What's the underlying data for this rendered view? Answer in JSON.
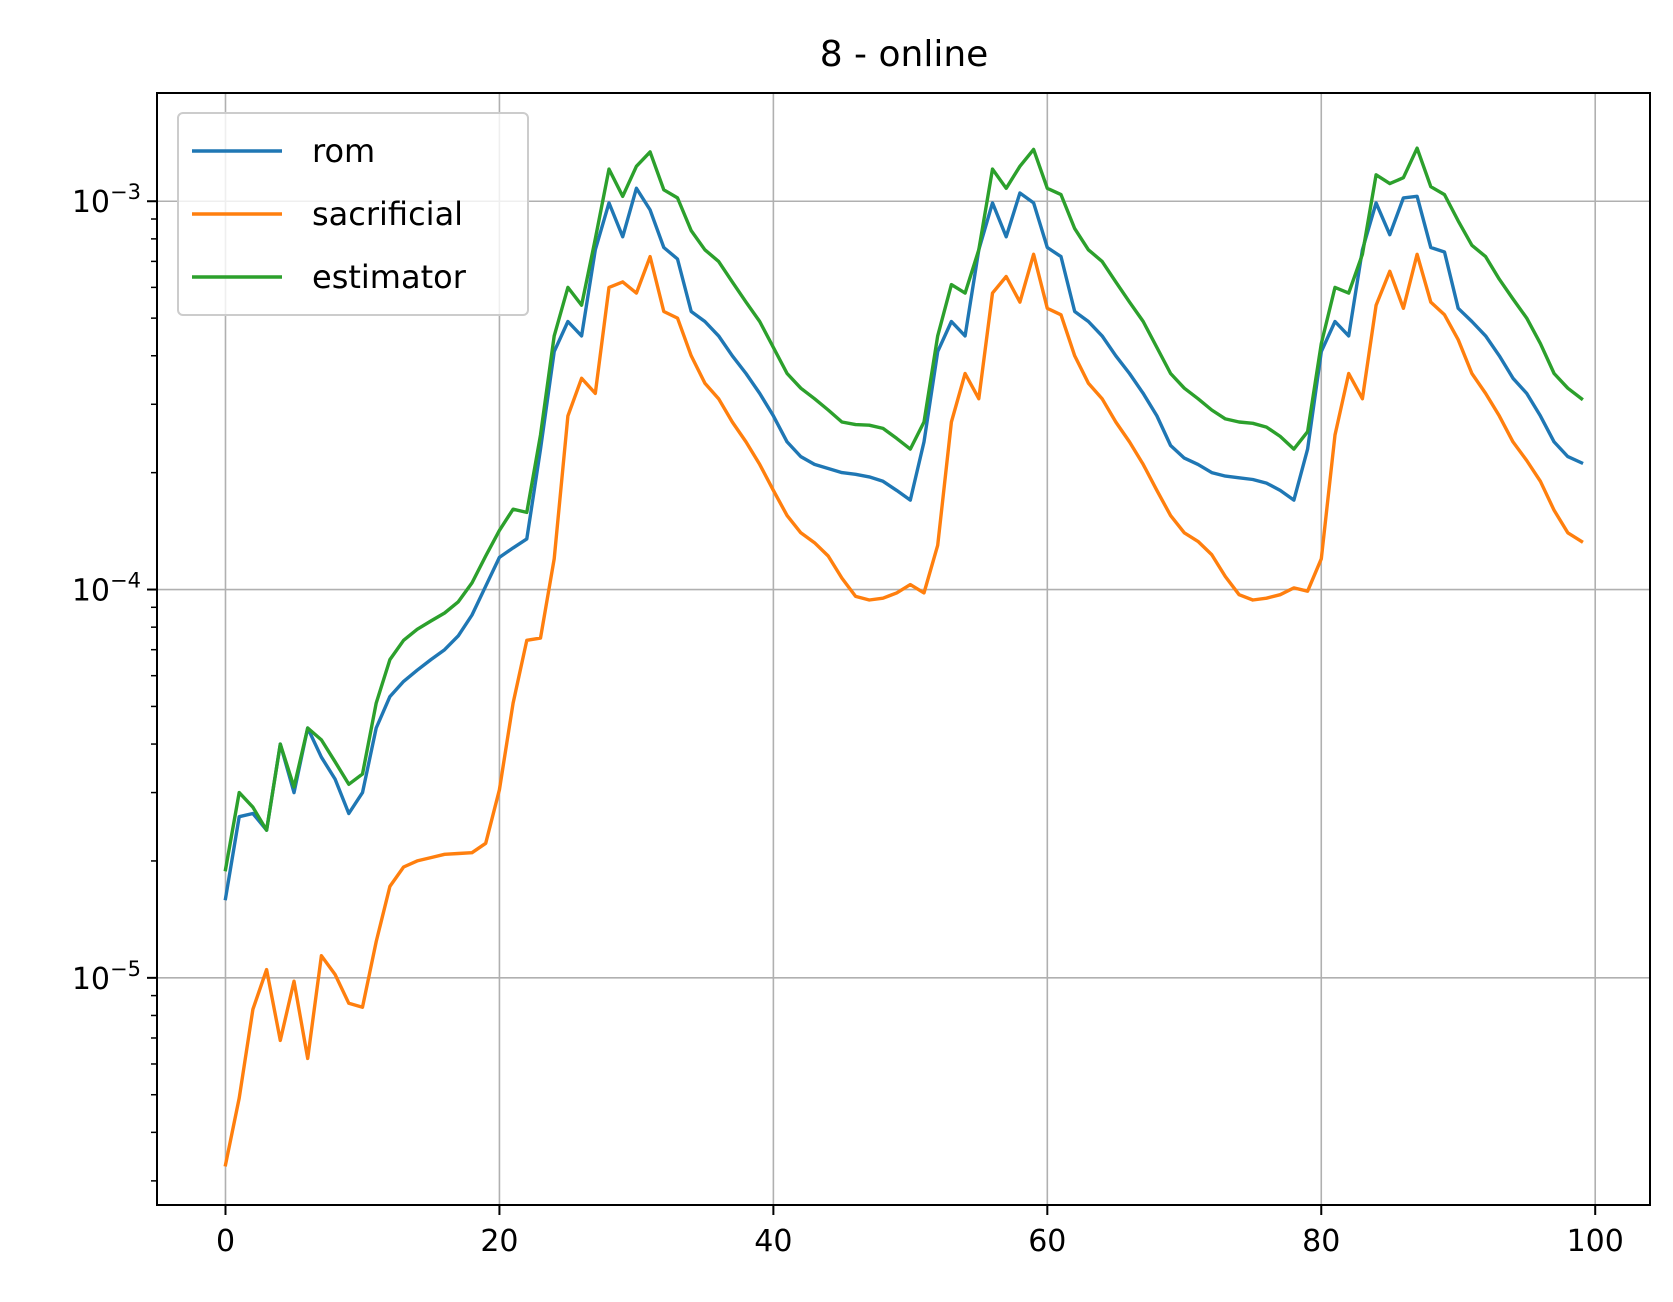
{
  "chart_data": {
    "type": "line",
    "title": "8 - online",
    "xlabel": "",
    "ylabel": "",
    "xlim": [
      -5,
      104
    ],
    "ylim": [
      2.6e-06,
      0.0019
    ],
    "yscale": "log",
    "grid": true,
    "legend_position": "top-left",
    "x_ticks": [
      0,
      20,
      40,
      60,
      80,
      100
    ],
    "x_tick_labels": [
      "0",
      "20",
      "40",
      "60",
      "80",
      "100"
    ],
    "y_ticks": [
      1e-05,
      0.0001,
      0.001
    ],
    "y_tick_labels": [
      {
        "base": "10",
        "exp": "−5"
      },
      {
        "base": "10",
        "exp": "−4"
      },
      {
        "base": "10",
        "exp": "−3"
      }
    ],
    "series": [
      {
        "name": "rom",
        "color": "#1f77b4",
        "x": [
          0,
          1,
          2,
          3,
          4,
          5,
          6,
          7,
          8,
          9,
          10,
          11,
          12,
          13,
          14,
          15,
          16,
          17,
          18,
          19,
          20,
          21,
          22,
          23,
          24,
          25,
          26,
          27,
          28,
          29,
          30,
          31,
          32,
          33,
          34,
          35,
          36,
          37,
          38,
          39,
          40,
          41,
          42,
          43,
          44,
          45,
          46,
          47,
          48,
          49,
          50,
          51,
          52,
          53,
          54,
          55,
          56,
          57,
          58,
          59,
          60,
          61,
          62,
          63,
          64,
          65,
          66,
          67,
          68,
          69,
          70,
          71,
          72,
          73,
          74,
          75,
          76,
          77,
          78,
          79,
          80,
          81,
          82,
          83,
          84,
          85,
          86,
          87,
          88,
          89,
          90,
          91,
          92,
          93,
          94,
          95,
          96,
          97,
          98,
          99
        ],
        "values": [
          1.6e-05,
          2.6e-05,
          2.65e-05,
          2.4e-05,
          4e-05,
          3e-05,
          4.4e-05,
          3.7e-05,
          3.25e-05,
          2.65e-05,
          3e-05,
          4.4e-05,
          5.3e-05,
          5.8e-05,
          6.2e-05,
          6.6e-05,
          7e-05,
          7.6e-05,
          8.6e-05,
          0.000102,
          0.000121,
          0.000128,
          0.000135,
          0.00023,
          0.00041,
          0.00049,
          0.00045,
          0.00075,
          0.00099,
          0.00081,
          0.00108,
          0.00095,
          0.00076,
          0.00071,
          0.00052,
          0.00049,
          0.00045,
          0.0004,
          0.00036,
          0.00032,
          0.00028,
          0.00024,
          0.00022,
          0.00021,
          0.000205,
          0.0002,
          0.000198,
          0.000195,
          0.00019,
          0.00018,
          0.00017,
          0.00024,
          0.00041,
          0.00049,
          0.00045,
          0.00075,
          0.00099,
          0.00081,
          0.00105,
          0.00099,
          0.00076,
          0.00072,
          0.00052,
          0.00049,
          0.00045,
          0.0004,
          0.00036,
          0.00032,
          0.00028,
          0.000235,
          0.000218,
          0.00021,
          0.0002,
          0.000196,
          0.000194,
          0.000192,
          0.000188,
          0.00018,
          0.00017,
          0.00023,
          0.00041,
          0.00049,
          0.00045,
          0.00075,
          0.00099,
          0.00082,
          0.00102,
          0.00103,
          0.00076,
          0.00074,
          0.00053,
          0.00049,
          0.00045,
          0.0004,
          0.00035,
          0.00032,
          0.00028,
          0.00024,
          0.00022,
          0.000212
        ]
      },
      {
        "name": "sacrificial",
        "color": "#ff7f0e",
        "x": [
          0,
          1,
          2,
          3,
          4,
          5,
          6,
          7,
          8,
          9,
          10,
          11,
          12,
          13,
          14,
          15,
          16,
          17,
          18,
          19,
          20,
          21,
          22,
          23,
          24,
          25,
          26,
          27,
          28,
          29,
          30,
          31,
          32,
          33,
          34,
          35,
          36,
          37,
          38,
          39,
          40,
          41,
          42,
          43,
          44,
          45,
          46,
          47,
          48,
          49,
          50,
          51,
          52,
          53,
          54,
          55,
          56,
          57,
          58,
          59,
          60,
          61,
          62,
          63,
          64,
          65,
          66,
          67,
          68,
          69,
          70,
          71,
          72,
          73,
          74,
          75,
          76,
          77,
          78,
          79,
          80,
          81,
          82,
          83,
          84,
          85,
          86,
          87,
          88,
          89,
          90,
          91,
          92,
          93,
          94,
          95,
          96,
          97,
          98,
          99
        ],
        "values": [
          3.3e-06,
          4.9e-06,
          8.3e-06,
          1.05e-05,
          6.9e-06,
          9.8e-06,
          6.2e-06,
          1.14e-05,
          1.02e-05,
          8.6e-06,
          8.4e-06,
          1.24e-05,
          1.72e-05,
          1.93e-05,
          2e-05,
          2.04e-05,
          2.08e-05,
          2.09e-05,
          2.1e-05,
          2.22e-05,
          3.05e-05,
          5.1e-05,
          7.4e-05,
          7.5e-05,
          0.00012,
          0.00028,
          0.00035,
          0.00032,
          0.0006,
          0.00062,
          0.00058,
          0.00072,
          0.00052,
          0.0005,
          0.0004,
          0.00034,
          0.00031,
          0.00027,
          0.00024,
          0.00021,
          0.00018,
          0.000155,
          0.00014,
          0.000132,
          0.000122,
          0.000107,
          9.6e-05,
          9.4e-05,
          9.5e-05,
          9.8e-05,
          0.000103,
          9.8e-05,
          0.00013,
          0.00027,
          0.00036,
          0.00031,
          0.00058,
          0.00064,
          0.00055,
          0.00073,
          0.00053,
          0.00051,
          0.0004,
          0.00034,
          0.00031,
          0.00027,
          0.00024,
          0.00021,
          0.00018,
          0.000155,
          0.00014,
          0.000133,
          0.000123,
          0.000108,
          9.7e-05,
          9.4e-05,
          9.5e-05,
          9.7e-05,
          0.000101,
          9.9e-05,
          0.00012,
          0.00025,
          0.00036,
          0.00031,
          0.00054,
          0.00066,
          0.00053,
          0.00073,
          0.00055,
          0.00051,
          0.00044,
          0.00036,
          0.00032,
          0.00028,
          0.00024,
          0.000215,
          0.00019,
          0.00016,
          0.00014,
          0.000133
        ]
      },
      {
        "name": "estimator",
        "color": "#2ca02c",
        "x": [
          0,
          1,
          2,
          3,
          4,
          5,
          6,
          7,
          8,
          9,
          10,
          11,
          12,
          13,
          14,
          15,
          16,
          17,
          18,
          19,
          20,
          21,
          22,
          23,
          24,
          25,
          26,
          27,
          28,
          29,
          30,
          31,
          32,
          33,
          34,
          35,
          36,
          37,
          38,
          39,
          40,
          41,
          42,
          43,
          44,
          45,
          46,
          47,
          48,
          49,
          50,
          51,
          52,
          53,
          54,
          55,
          56,
          57,
          58,
          59,
          60,
          61,
          62,
          63,
          64,
          65,
          66,
          67,
          68,
          69,
          70,
          71,
          72,
          73,
          74,
          75,
          76,
          77,
          78,
          79,
          80,
          81,
          82,
          83,
          84,
          85,
          86,
          87,
          88,
          89,
          90,
          91,
          92,
          93,
          94,
          95,
          96,
          97,
          98,
          99
        ],
        "values": [
          1.9e-05,
          3e-05,
          2.75e-05,
          2.4e-05,
          4e-05,
          3.1e-05,
          4.4e-05,
          4.1e-05,
          3.6e-05,
          3.15e-05,
          3.35e-05,
          5.1e-05,
          6.6e-05,
          7.4e-05,
          7.9e-05,
          8.3e-05,
          8.7e-05,
          9.3e-05,
          0.000104,
          0.000122,
          0.000142,
          0.000161,
          0.000158,
          0.00025,
          0.00045,
          0.0006,
          0.00054,
          0.0008,
          0.00121,
          0.00103,
          0.00123,
          0.00134,
          0.00107,
          0.00102,
          0.00084,
          0.00075,
          0.0007,
          0.00062,
          0.00055,
          0.00049,
          0.00042,
          0.00036,
          0.00033,
          0.00031,
          0.00029,
          0.00027,
          0.000266,
          0.000265,
          0.00026,
          0.000245,
          0.00023,
          0.00027,
          0.00045,
          0.00061,
          0.00058,
          0.00075,
          0.00121,
          0.00108,
          0.00123,
          0.00136,
          0.00108,
          0.00104,
          0.00085,
          0.00075,
          0.0007,
          0.00062,
          0.00055,
          0.00049,
          0.00042,
          0.00036,
          0.00033,
          0.00031,
          0.00029,
          0.000275,
          0.00027,
          0.000268,
          0.000262,
          0.000248,
          0.00023,
          0.000255,
          0.00043,
          0.0006,
          0.00058,
          0.00073,
          0.00117,
          0.00111,
          0.00115,
          0.00137,
          0.00109,
          0.00104,
          0.00089,
          0.00077,
          0.00072,
          0.00063,
          0.00056,
          0.0005,
          0.00043,
          0.00036,
          0.00033,
          0.00031
        ]
      }
    ]
  }
}
